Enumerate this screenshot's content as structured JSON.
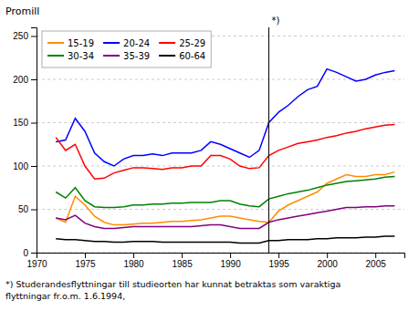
{
  "chart_data": {
    "type": "line",
    "y_label": "Promill",
    "footnote": "*) Studerandesflyttningar till studieorten har kunnat betraktas som varaktiga\nflyttningar fr.o.m. 1.6.1994,",
    "annotations": [
      {
        "text": "*)",
        "x": 1994
      }
    ],
    "x": [
      1972,
      1973,
      1974,
      1975,
      1976,
      1977,
      1978,
      1979,
      1980,
      1981,
      1982,
      1983,
      1984,
      1985,
      1986,
      1987,
      1988,
      1989,
      1990,
      1991,
      1992,
      1993,
      1994,
      1995,
      1996,
      1997,
      1998,
      1999,
      2000,
      2001,
      2002,
      2003,
      2004,
      2005,
      2006,
      2007
    ],
    "series": [
      {
        "name": "15-19",
        "color": "#FF8C00",
        "values": [
          40,
          35,
          65,
          55,
          42,
          35,
          32,
          32,
          33,
          34,
          34,
          35,
          36,
          36,
          37,
          38,
          40,
          42,
          42,
          40,
          38,
          36,
          35,
          48,
          55,
          60,
          65,
          70,
          80,
          85,
          90,
          88,
          88,
          90,
          90,
          93
        ]
      },
      {
        "name": "20-24",
        "color": "#0000FF",
        "values": [
          128,
          130,
          155,
          140,
          115,
          105,
          100,
          108,
          112,
          112,
          114,
          112,
          115,
          115,
          115,
          118,
          128,
          125,
          120,
          115,
          110,
          118,
          150,
          162,
          170,
          180,
          188,
          192,
          212,
          208,
          203,
          198,
          200,
          205,
          208,
          210
        ]
      },
      {
        "name": "25-29",
        "color": "#FF0000",
        "values": [
          133,
          118,
          125,
          100,
          85,
          86,
          92,
          95,
          98,
          98,
          97,
          96,
          98,
          98,
          100,
          100,
          112,
          112,
          108,
          100,
          97,
          98,
          112,
          118,
          122,
          126,
          128,
          130,
          133,
          135,
          138,
          140,
          143,
          145,
          147,
          148
        ]
      },
      {
        "name": "30-34",
        "color": "#008000",
        "values": [
          70,
          63,
          75,
          60,
          53,
          52,
          52,
          53,
          55,
          55,
          56,
          56,
          57,
          57,
          58,
          58,
          58,
          60,
          60,
          56,
          54,
          53,
          62,
          65,
          68,
          70,
          72,
          75,
          78,
          80,
          82,
          83,
          84,
          85,
          87,
          88
        ]
      },
      {
        "name": "35-39",
        "color": "#800080",
        "values": [
          40,
          38,
          43,
          34,
          30,
          28,
          28,
          29,
          30,
          30,
          30,
          30,
          30,
          30,
          30,
          31,
          32,
          32,
          30,
          28,
          28,
          28,
          35,
          38,
          40,
          42,
          44,
          46,
          48,
          50,
          52,
          52,
          53,
          53,
          54,
          54
        ]
      },
      {
        "name": "60-64",
        "color": "#000000",
        "values": [
          16,
          15,
          15,
          14,
          13,
          13,
          12,
          12,
          13,
          13,
          13,
          12,
          12,
          12,
          12,
          12,
          12,
          12,
          12,
          11,
          11,
          11,
          14,
          14,
          15,
          15,
          15,
          16,
          16,
          17,
          17,
          17,
          18,
          18,
          19,
          19
        ]
      }
    ],
    "xlim": [
      1970,
      2008
    ],
    "ylim": [
      0,
      260
    ],
    "xticks": [
      1970,
      1975,
      1980,
      1985,
      1990,
      1995,
      2000,
      2005
    ],
    "yticks": [
      0,
      50,
      100,
      150,
      200,
      250
    ],
    "grid": "y",
    "legend": "upper left"
  }
}
